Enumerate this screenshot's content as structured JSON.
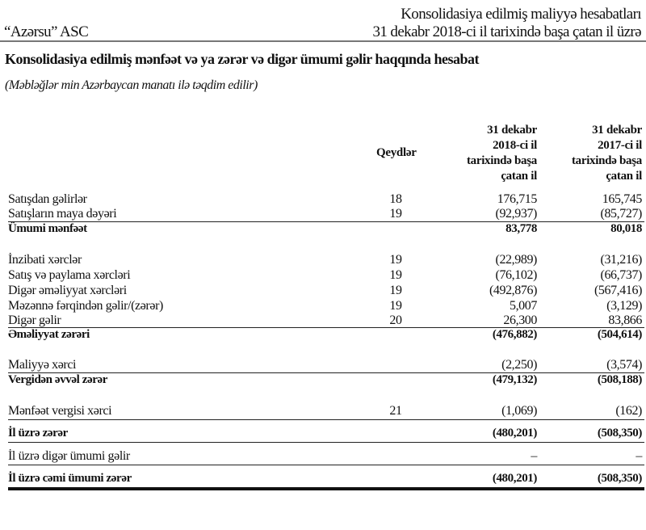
{
  "header": {
    "company": "“Azərsu” ASC",
    "doc_title": "Konsolidasiya edilmiş maliyyə hesabatları",
    "period": "31 dekabr 2018-ci il tarixində başa çatan il üzrə"
  },
  "statement": {
    "title": "Konsolidasiya edilmiş mənfəət və ya zərər və digər ümumi gəlir haqqında hesabat",
    "subtitle": "(Məbləğlər min Azərbaycan manatı ilə təqdim edilir)"
  },
  "columns": {
    "notes": "Qeydlər",
    "col1": [
      "31 dekabr",
      "2018-ci il",
      "tarixində başa",
      "çatan il"
    ],
    "col2": [
      "31 dekabr",
      "2017-ci il",
      "tarixində başa",
      "çatan il"
    ]
  },
  "rows": [
    {
      "label": "Satışdan gəlirlər",
      "note": "18",
      "v1": "176,715",
      "v2": "165,745",
      "bold": false
    },
    {
      "label": "Satışların maya dəyəri",
      "note": "19",
      "v1": "(92,937)",
      "v2": "(85,727)",
      "bold": false
    },
    {
      "label": "Ümumi mənfəət",
      "note": "",
      "v1": "83,778",
      "v2": "80,018",
      "bold": true
    },
    {
      "label": "İnzibati xərclər",
      "note": "19",
      "v1": "(22,989)",
      "v2": "(31,216)",
      "bold": false
    },
    {
      "label": "Satış və paylama xərcləri",
      "note": "19",
      "v1": "(76,102)",
      "v2": "(66,737)",
      "bold": false
    },
    {
      "label": "Digər əməliyyat xərcləri",
      "note": "19",
      "v1": "(492,876)",
      "v2": "(567,416)",
      "bold": false
    },
    {
      "label": "Məzənnə fərqindən gəlir/(zərər)",
      "note": "19",
      "v1": "5,007",
      "v2": "(3,129)",
      "bold": false
    },
    {
      "label": "Digər gəlir",
      "note": "20",
      "v1": "26,300",
      "v2": "83,866",
      "bold": false
    },
    {
      "label": "Əməliyyat zərəri",
      "note": "",
      "v1": "(476,882)",
      "v2": "(504,614)",
      "bold": true
    },
    {
      "label": "Maliyyə xərci",
      "note": "",
      "v1": "(2,250)",
      "v2": "(3,574)",
      "bold": false
    },
    {
      "label": "Vergidən əvvəl zərər",
      "note": "",
      "v1": "(479,132)",
      "v2": "(508,188)",
      "bold": true
    },
    {
      "label": "Mənfəət vergisi xərci",
      "note": "21",
      "v1": "(1,069)",
      "v2": "(162)",
      "bold": false
    },
    {
      "label": "İl üzrə zərər",
      "note": "",
      "v1": "(480,201)",
      "v2": "(508,350)",
      "bold": true
    },
    {
      "label": "İl üzrə digər ümumi gəlir",
      "note": "",
      "v1": "–",
      "v2": "–",
      "bold": false
    },
    {
      "label": "İl üzrə cəmi ümumi zərər",
      "note": "",
      "v1": "(480,201)",
      "v2": "(508,350)",
      "bold": true
    }
  ]
}
